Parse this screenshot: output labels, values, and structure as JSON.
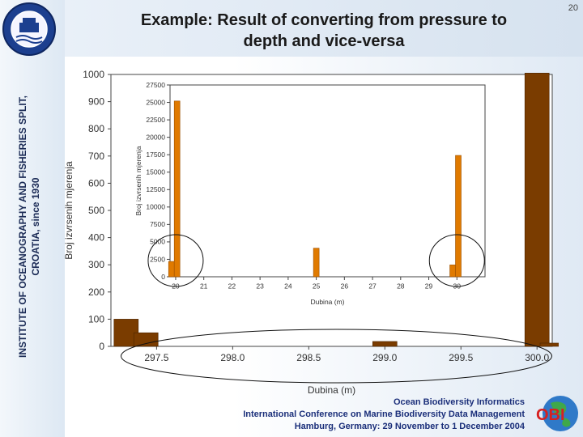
{
  "slide": {
    "number": "20",
    "title_line1": "Example: Result of converting from pressure to",
    "title_line2": "depth and vice-versa",
    "institute_line1": "INSTITUTE OF OCEANOGRAPHY AND FISHERIES  SPLIT,",
    "institute_line2": "CROATIA,  since 1930",
    "footer_line1": "Ocean Biodiversity Informatics",
    "footer_line2": "International Conference on Marine Biodiversity Data Management",
    "footer_line3": "Hamburg, Germany: 29 November to 1 December 2004",
    "logo_text": "OBI",
    "colors": {
      "bar_main": "#7a3c00",
      "bar_inset": "#e07a00",
      "title": "#1a1a1a",
      "footer": "#1b2f7a"
    }
  },
  "chart_data": [
    {
      "type": "bar",
      "ylabel": "Broj izvrsenih mjerenja",
      "xlabel": "Dubina (m)",
      "ylim": [
        0,
        1000
      ],
      "yticks": [
        "0",
        "100",
        "200",
        "300",
        "400",
        "500",
        "600",
        "700",
        "800",
        "900",
        "1000"
      ],
      "xticks": [
        "297.5",
        "298.0",
        "298.5",
        "299.0",
        "299.5",
        "300.0"
      ],
      "xlim": [
        297.2,
        300.1
      ],
      "bars": [
        {
          "x": 297.3,
          "value": 100
        },
        {
          "x": 297.43,
          "value": 50
        },
        {
          "x": 299.0,
          "value": 18
        },
        {
          "x": 300.0,
          "value": 1005
        },
        {
          "x": 300.1,
          "value": 12
        }
      ]
    },
    {
      "type": "bar",
      "ylabel": "Broj izvrsenih mjerenja",
      "xlabel": "Dubina (m)",
      "ylim": [
        0,
        27500
      ],
      "yticks": [
        "0",
        "2500",
        "5000",
        "7500",
        "10000",
        "12500",
        "15000",
        "17500",
        "20000",
        "22500",
        "25000",
        "27500"
      ],
      "xticks": [
        "20",
        "21",
        "22",
        "23",
        "24",
        "25",
        "26",
        "27",
        "28",
        "29",
        "30"
      ],
      "xlim": [
        19.8,
        31
      ],
      "bars": [
        {
          "x": 19.85,
          "value": 2200
        },
        {
          "x": 20.05,
          "value": 25200
        },
        {
          "x": 25.0,
          "value": 4100
        },
        {
          "x": 29.85,
          "value": 1700
        },
        {
          "x": 30.05,
          "value": 17400
        }
      ]
    }
  ]
}
